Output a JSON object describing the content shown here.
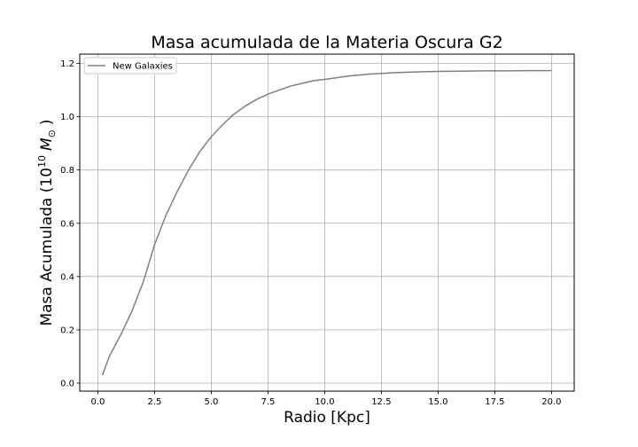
{
  "chart_data": {
    "type": "line",
    "title": "Masa acumulada de la Materia Oscura G2",
    "xlabel": "Radio [Kpc]",
    "ylabel": {
      "prefix": "Masa Acumulada (10",
      "exponent": "10",
      "unit": "M",
      "subscript": "⊙",
      "suffix": ")"
    },
    "xlim": [
      -0.8,
      21.0
    ],
    "ylim": [
      -0.03,
      1.235
    ],
    "xticks": [
      0.0,
      2.5,
      5.0,
      7.5,
      10.0,
      12.5,
      15.0,
      17.5,
      20.0
    ],
    "xtick_labels": [
      "0.0",
      "2.5",
      "5.0",
      "7.5",
      "10.0",
      "12.5",
      "15.0",
      "17.5",
      "20.0"
    ],
    "yticks": [
      0.0,
      0.2,
      0.4,
      0.6,
      0.8,
      1.0,
      1.2
    ],
    "ytick_labels": [
      "0.0",
      "0.2",
      "0.4",
      "0.6",
      "0.8",
      "1.0",
      "1.2"
    ],
    "grid": true,
    "legend_position": "top-left",
    "series": [
      {
        "name": "New Galaxies",
        "color": "#808080",
        "x": [
          0.2,
          0.5,
          1.0,
          1.5,
          2.0,
          2.5,
          3.0,
          3.5,
          4.0,
          4.5,
          5.0,
          5.5,
          6.0,
          6.5,
          7.0,
          7.5,
          8.0,
          8.5,
          9.0,
          9.5,
          10.0,
          11.0,
          12.0,
          12.5,
          13.0,
          14.0,
          15.0,
          16.0,
          17.0,
          18.0,
          19.0,
          20.0
        ],
        "y": [
          0.03,
          0.1,
          0.18,
          0.27,
          0.38,
          0.52,
          0.63,
          0.72,
          0.8,
          0.87,
          0.925,
          0.97,
          1.01,
          1.04,
          1.065,
          1.085,
          1.1,
          1.115,
          1.125,
          1.135,
          1.14,
          1.152,
          1.16,
          1.162,
          1.165,
          1.168,
          1.17,
          1.171,
          1.172,
          1.172,
          1.173,
          1.173
        ]
      }
    ]
  }
}
